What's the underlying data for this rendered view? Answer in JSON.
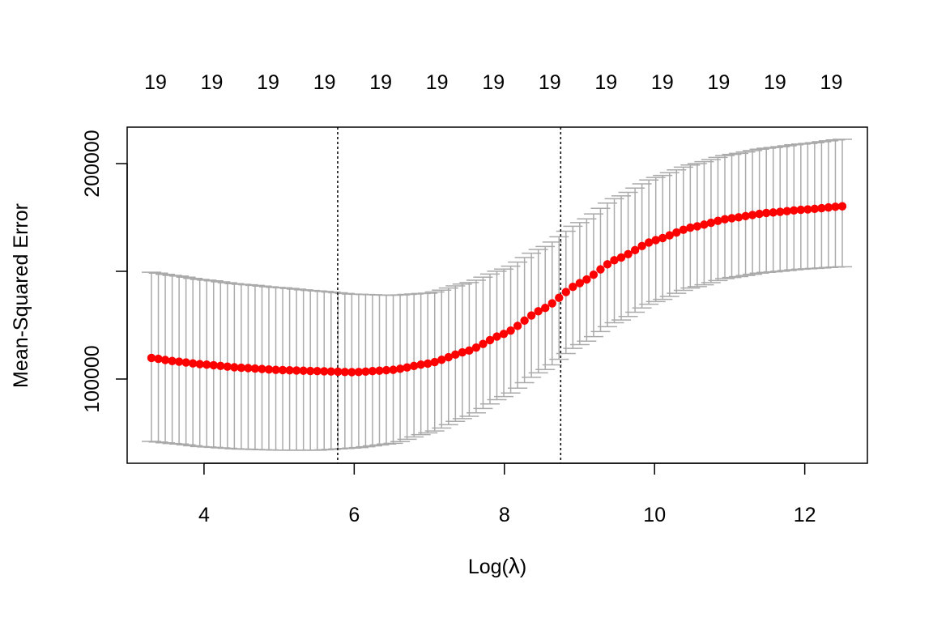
{
  "chart_data": {
    "type": "scatter",
    "title": "",
    "xlabel_text": "Log(",
    "xlabel_symbol": "λ",
    "xlabel_close": ")",
    "ylabel": "Mean-Squared Error",
    "x_ticks": [
      "4",
      "6",
      "8",
      "10",
      "12"
    ],
    "y_ticks": [
      "100000",
      "200000"
    ],
    "top_labels": [
      "19",
      "19",
      "19",
      "19",
      "19",
      "19",
      "19",
      "19",
      "19",
      "19",
      "19",
      "19",
      "19"
    ],
    "top_label_positions": [
      3.3,
      4.05,
      4.8,
      5.55,
      6.3,
      7.05,
      7.8,
      8.55,
      9.3,
      10.05,
      10.8,
      11.55,
      12.3
    ],
    "xlim": [
      3.3,
      12.5
    ],
    "ylim": [
      64000,
      220000
    ],
    "vlines": [
      5.78,
      8.75
    ],
    "grid": false,
    "series": [
      {
        "kind": "mean_with_error_bars",
        "color": "#ff0000",
        "errorbar_color": "#aaaaaa",
        "points": [
          {
            "x": 3.3,
            "y": 111000,
            "lo": 73000,
            "hi": 150000
          },
          {
            "x": 3.6,
            "y": 109500,
            "lo": 72000,
            "hi": 148500
          },
          {
            "x": 4.0,
            "y": 108000,
            "lo": 70500,
            "hi": 146500
          },
          {
            "x": 4.5,
            "y": 106500,
            "lo": 69500,
            "hi": 144500
          },
          {
            "x": 5.0,
            "y": 105500,
            "lo": 69000,
            "hi": 143000
          },
          {
            "x": 5.5,
            "y": 105000,
            "lo": 69000,
            "hi": 141500
          },
          {
            "x": 6.0,
            "y": 104500,
            "lo": 70000,
            "hi": 140000
          },
          {
            "x": 6.5,
            "y": 105500,
            "lo": 72000,
            "hi": 139500
          },
          {
            "x": 7.0,
            "y": 108500,
            "lo": 77000,
            "hi": 140500
          },
          {
            "x": 7.5,
            "y": 114000,
            "lo": 84000,
            "hi": 145000
          },
          {
            "x": 8.0,
            "y": 122000,
            "lo": 93500,
            "hi": 151500
          },
          {
            "x": 8.5,
            "y": 133000,
            "lo": 105000,
            "hi": 161000
          },
          {
            "x": 9.0,
            "y": 145000,
            "lo": 117000,
            "hi": 172500
          },
          {
            "x": 9.5,
            "y": 156000,
            "lo": 127500,
            "hi": 184000
          },
          {
            "x": 10.0,
            "y": 164500,
            "lo": 136500,
            "hi": 193000
          },
          {
            "x": 10.5,
            "y": 170500,
            "lo": 143000,
            "hi": 199000
          },
          {
            "x": 11.0,
            "y": 174500,
            "lo": 147500,
            "hi": 203500
          },
          {
            "x": 11.5,
            "y": 177000,
            "lo": 150000,
            "hi": 206500
          },
          {
            "x": 12.0,
            "y": 178500,
            "lo": 151500,
            "hi": 208500
          },
          {
            "x": 12.5,
            "y": 180000,
            "lo": 152500,
            "hi": 210500
          }
        ]
      }
    ]
  }
}
